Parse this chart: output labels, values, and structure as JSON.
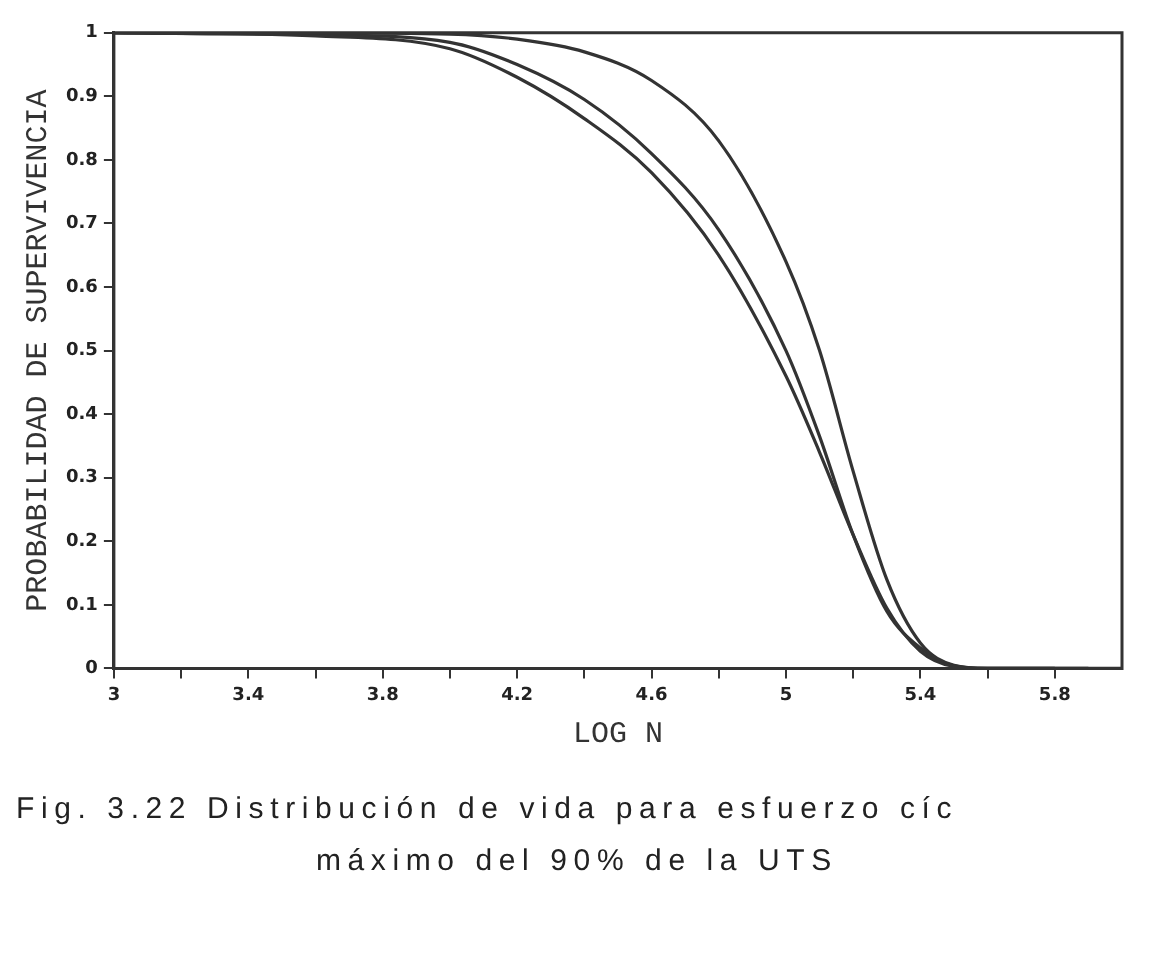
{
  "chart_data": {
    "type": "line",
    "xlabel": "LOG N",
    "ylabel": "PROBABILIDAD DE SUPERVIVENCIA",
    "x": [
      3.0,
      3.6,
      4.0,
      4.2,
      4.4,
      4.6,
      4.8,
      5.0,
      5.1,
      5.2,
      5.3,
      5.4,
      5.5,
      5.6,
      6.0
    ],
    "series": [
      {
        "color": "#333333",
        "values": [
          1,
          0.995,
          0.975,
          0.93,
          0.865,
          0.78,
          0.65,
          0.46,
          0.34,
          0.21,
          0.095,
          0.027,
          0.003,
          0,
          0
        ]
      },
      {
        "color": "#333333",
        "x": [
          3.2,
          3.6,
          4.0,
          4.2,
          4.4,
          4.6,
          4.8,
          5.0,
          5.1,
          5.2,
          5.3,
          5.4,
          5.5,
          5.6,
          5.9
        ],
        "values": [
          0.999,
          0.997,
          0.985,
          0.95,
          0.895,
          0.81,
          0.69,
          0.5,
          0.365,
          0.21,
          0.09,
          0.032,
          0.004,
          0,
          0
        ]
      },
      {
        "color": "#333333",
        "x": [
          3.0,
          3.6,
          4.0,
          4.2,
          4.4,
          4.6,
          4.8,
          5.0,
          5.1,
          5.2,
          5.3,
          5.4,
          5.5,
          5.6,
          5.8
        ],
        "values": [
          1,
          1,
          0.998,
          0.99,
          0.97,
          0.925,
          0.83,
          0.64,
          0.5,
          0.31,
          0.14,
          0.04,
          0.005,
          0,
          0
        ]
      }
    ],
    "xlim": [
      3,
      6
    ],
    "xticks": [
      3,
      {
        "value": 3.2,
        "label": null
      },
      3.4,
      {
        "value": 3.6,
        "label": null
      },
      3.8,
      {
        "value": 4.0,
        "label": null
      },
      4.2,
      {
        "value": 4.4,
        "label": null
      },
      4.6,
      {
        "value": 4.8,
        "label": null
      },
      5,
      {
        "value": 5.2,
        "label": null
      },
      5.4,
      {
        "value": 5.6,
        "label": null
      },
      5.8
    ],
    "ylim": [
      0,
      1
    ],
    "yticks": [
      0,
      0.1,
      0.2,
      0.3,
      0.4,
      0.5,
      0.6,
      0.7,
      0.8,
      0.9,
      1
    ],
    "grid": false,
    "legend": false,
    "marker": "none",
    "line_style": "solid",
    "annotations": [
      "Fig. 3.22  Distribución de vida para esfuerzo cíc",
      "máximo del 90% de la UTS"
    ]
  }
}
